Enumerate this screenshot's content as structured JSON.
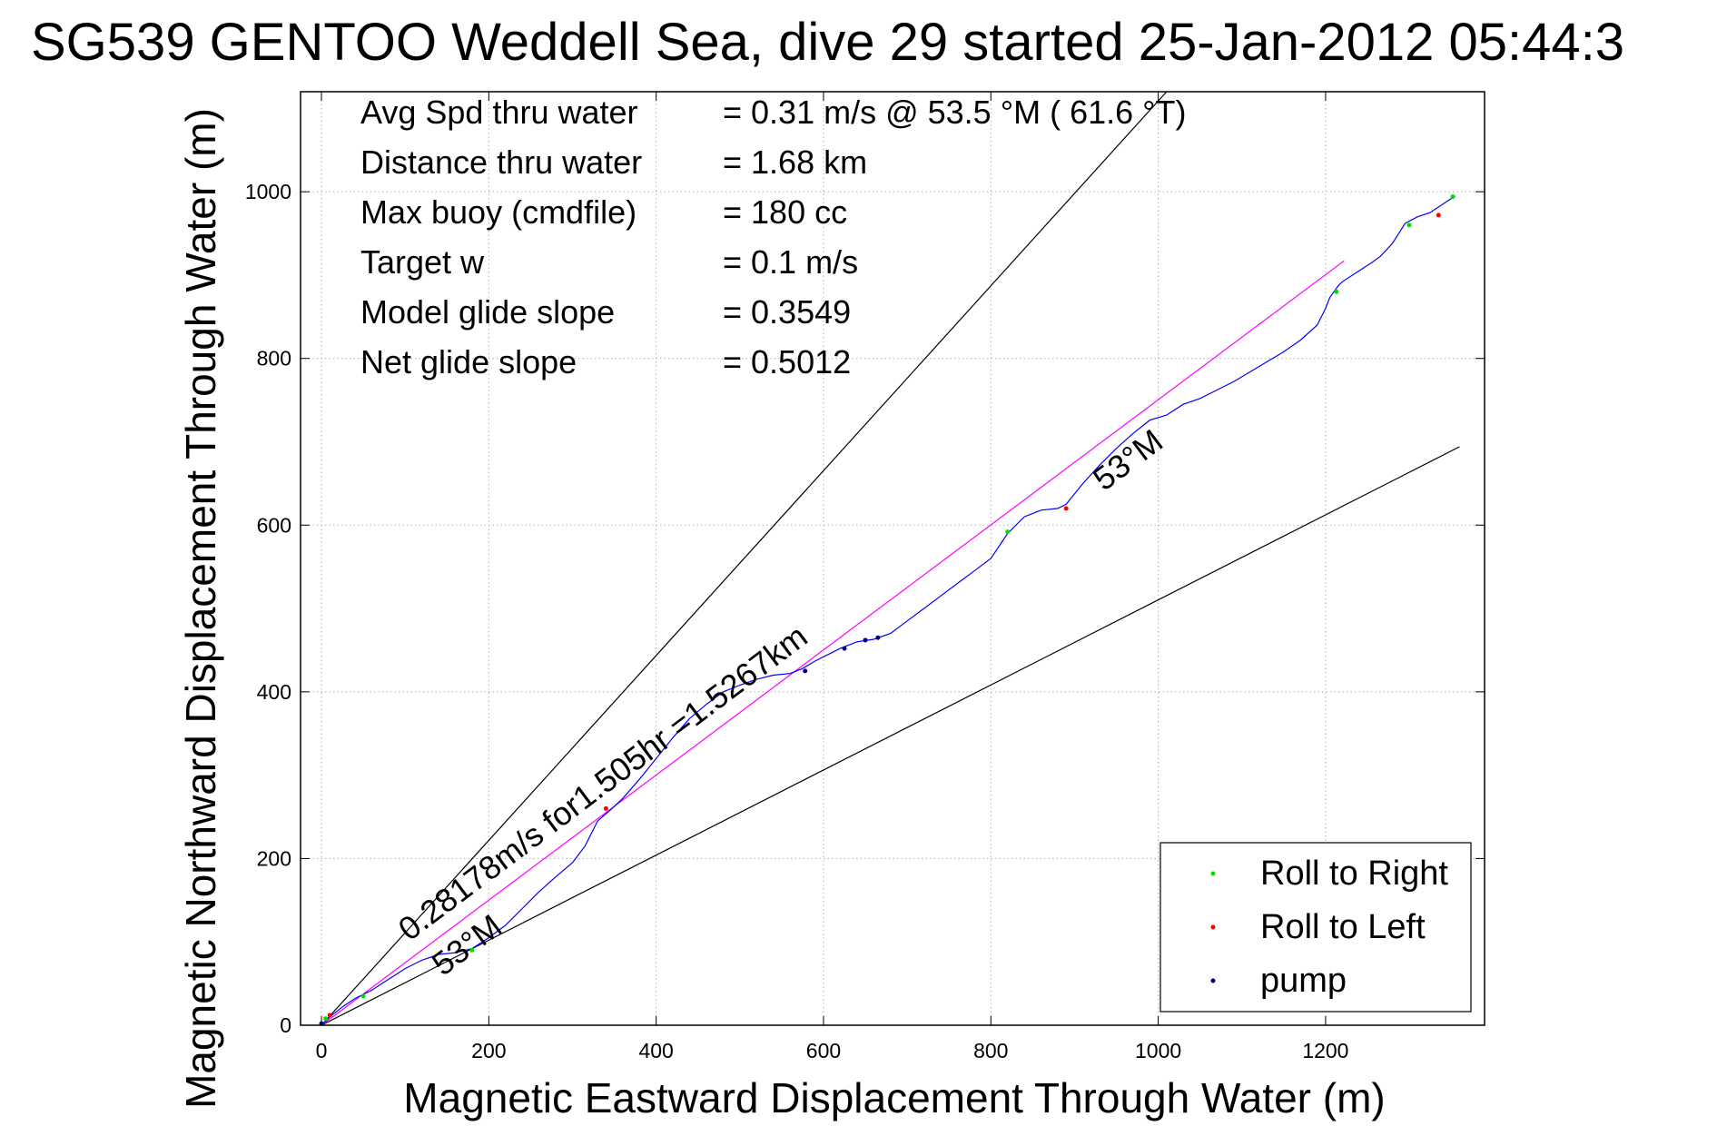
{
  "chart_data": {
    "type": "line",
    "title": "SG539 GENTOO Weddell Sea, dive 29 started 25-Jan-2012 05:44:3",
    "xlabel": "Magnetic Eastward Displacement Through Water (m)",
    "ylabel": "Magnetic Northward Displacement Through Water (m)",
    "xlim": [
      -25,
      1390
    ],
    "ylim": [
      0,
      1120
    ],
    "xticks": [
      0,
      200,
      400,
      600,
      800,
      1000,
      1200
    ],
    "yticks": [
      0,
      200,
      400,
      600,
      800,
      1000
    ],
    "grid": true,
    "stats": [
      {
        "label": "Avg Spd thru water",
        "value": "=  0.31 m/s @  53.5 °M ( 61.6 °T)"
      },
      {
        "label": "Distance thru water",
        "value": "=  1.68 km"
      },
      {
        "label": "Max buoy (cmdfile)",
        "value": "= 180 cc"
      },
      {
        "label": "Target w",
        "value": "= 0.1 m/s"
      },
      {
        "label": "Model glide slope",
        "value": "= 0.3549"
      },
      {
        "label": "Net glide slope",
        "value": "= 0.5012"
      }
    ],
    "annotations": [
      {
        "text": "0.28178m/s for1.505hr =1.5267km",
        "x": 105,
        "y": 100
      },
      {
        "text": "53°M",
        "x": 145,
        "y": 58
      },
      {
        "text": "53°M",
        "x": 935,
        "y": 640
      }
    ],
    "reference_lines": [
      {
        "x": [
          0,
          1010
        ],
        "y": [
          0,
          1120
        ],
        "color": "#000000"
      },
      {
        "x": [
          0,
          1360
        ],
        "y": [
          0,
          694
        ],
        "color": "#000000"
      },
      {
        "x": [
          0,
          1222
        ],
        "y": [
          0,
          917
        ],
        "color": "#ff00ff"
      }
    ],
    "series": [
      {
        "color": "#0000ff",
        "x": [
          0,
          10,
          25,
          40,
          60,
          80,
          100,
          120,
          140,
          160,
          180,
          200,
          220,
          240,
          260,
          280,
          300,
          315,
          330,
          345,
          360,
          380,
          400,
          420,
          440,
          460,
          480,
          500,
          520,
          540,
          560,
          575,
          590,
          610,
          620,
          640,
          660,
          680,
          700,
          720,
          740,
          760,
          780,
          800,
          820,
          840,
          860,
          880,
          890,
          910,
          930,
          950,
          970,
          990,
          1010,
          1030,
          1050,
          1070,
          1090,
          1110,
          1130,
          1150,
          1170,
          1190,
          1200,
          1205,
          1210,
          1215,
          1220,
          1240,
          1255,
          1265,
          1280,
          1295,
          1310,
          1325,
          1340,
          1355
        ],
        "y": [
          0,
          10,
          22,
          32,
          42,
          55,
          68,
          78,
          85,
          87,
          92,
          105,
          120,
          140,
          160,
          178,
          195,
          215,
          245,
          258,
          272,
          295,
          320,
          345,
          368,
          385,
          400,
          408,
          415,
          420,
          422,
          428,
          437,
          447,
          452,
          460,
          463,
          470,
          485,
          500,
          515,
          530,
          545,
          560,
          590,
          610,
          618,
          620,
          625,
          650,
          672,
          692,
          710,
          726,
          732,
          745,
          752,
          762,
          772,
          784,
          796,
          808,
          822,
          840,
          860,
          873,
          880,
          887,
          892,
          905,
          915,
          922,
          938,
          962,
          970,
          975,
          985,
          995
        ]
      }
    ],
    "markers": [
      {
        "name": "Roll to Right",
        "color": "#00dd00",
        "points": [
          [
            5,
            8
          ],
          [
            50,
            35
          ],
          [
            180,
            90
          ],
          [
            820,
            592
          ],
          [
            1213,
            880
          ],
          [
            1300,
            960
          ],
          [
            1352,
            994
          ]
        ]
      },
      {
        "name": "Roll to Left",
        "color": "#ff0000",
        "points": [
          [
            10,
            12
          ],
          [
            340,
            260
          ],
          [
            890,
            620
          ],
          [
            1335,
            972
          ]
        ]
      },
      {
        "name": "pump",
        "color": "#000080",
        "points": [
          [
            0,
            2
          ],
          [
            578,
            425
          ],
          [
            625,
            452
          ],
          [
            650,
            462
          ],
          [
            665,
            465
          ]
        ]
      }
    ],
    "legend": {
      "position": "bottom-right",
      "entries": [
        {
          "label": "Roll to Right",
          "color": "#00dd00"
        },
        {
          "label": "Roll to Left",
          "color": "#ff0000"
        },
        {
          "label": "pump",
          "color": "#000080"
        }
      ]
    }
  }
}
